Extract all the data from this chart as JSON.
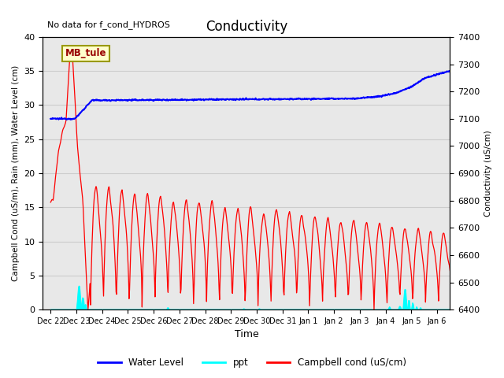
{
  "title": "Conductivity",
  "top_left_text": "No data for f_cond_HYDROS",
  "annotation_box": "MB_tule",
  "xlabel": "Time",
  "ylabel_left": "Campbell Cond (uS/m), Rain (mm), Water Level (cm)",
  "ylabel_right": "Conductivity (uS/cm)",
  "ylim_left": [
    0,
    40
  ],
  "ylim_right": [
    6400,
    7400
  ],
  "xtick_labels": [
    "Dec 22",
    "Dec 23",
    "Dec 24",
    "Dec 25",
    "Dec 26",
    "Dec 27",
    "Dec 28",
    "Dec 29",
    "Dec 30",
    "Dec 31",
    "Jan 1",
    "Jan 2",
    "Jan 3",
    "Jan 4",
    "Jan 5",
    "Jan 6"
  ],
  "xtick_positions": [
    0,
    1,
    2,
    3,
    4,
    5,
    6,
    7,
    8,
    9,
    10,
    11,
    12,
    13,
    14,
    15
  ],
  "grid_color": "#cccccc",
  "bg_color": "#e8e8e8",
  "annotation_facecolor": "#ffffcc",
  "annotation_edgecolor": "#999900",
  "annotation_textcolor": "#990000"
}
